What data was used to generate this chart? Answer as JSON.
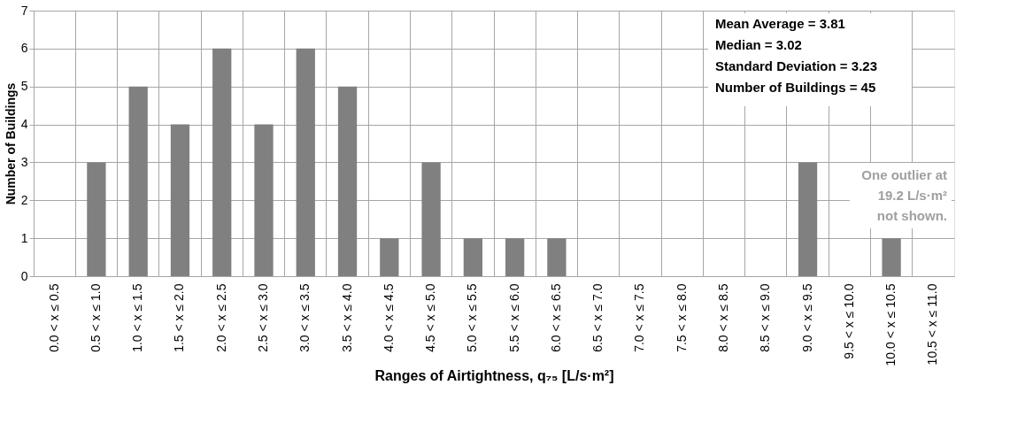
{
  "chart_data": {
    "type": "bar",
    "xlabel": "Ranges of Airtightness, q₇₅ [L/s·m²]",
    "ylabel": "Number of Buildings",
    "categories": [
      "0.0 < x ≤ 0.5",
      "0.5 < x ≤ 1.0",
      "1.0 < x ≤ 1.5",
      "1.5 < x ≤ 2.0",
      "2.0 < x ≤ 2.5",
      "2.5 < x ≤ 3.0",
      "3.0 < x ≤ 3.5",
      "3.5 < x ≤ 4.0",
      "4.0 < x ≤ 4.5",
      "4.5 < x ≤ 5.0",
      "5.0 < x ≤ 5.5",
      "5.5 < x ≤ 6.0",
      "6.0 < x ≤ 6.5",
      "6.5 < x ≤ 7.0",
      "7.0 < x ≤ 7.5",
      "7.5 < x ≤ 8.0",
      "8.0 < x ≤ 8.5",
      "8.5 < x ≤ 9.0",
      "9.0 < x ≤ 9.5",
      "9.5 < x ≤ 10.0",
      "10.0 < x ≤ 10.5",
      "10.5 < x ≤ 11.0"
    ],
    "values": [
      0,
      3,
      5,
      4,
      6,
      4,
      6,
      5,
      1,
      3,
      1,
      1,
      1,
      0,
      0,
      0,
      0,
      0,
      3,
      0,
      1,
      0
    ],
    "color": "#808080",
    "ylim": [
      0,
      7
    ],
    "yticks": [
      0,
      1,
      2,
      3,
      4,
      5,
      6,
      7
    ],
    "grid": true,
    "annotations": [
      "Mean Average = 3.81",
      "Median = 3.02",
      "Standard Deviation = 3.23",
      "Number of Buildings = 45",
      "One outlier at 19.2 L/s·m² not shown."
    ]
  }
}
